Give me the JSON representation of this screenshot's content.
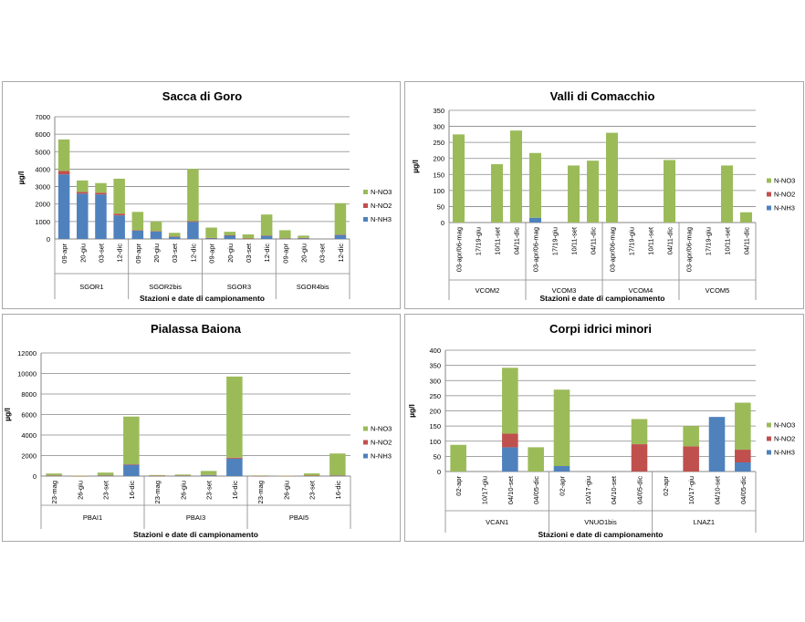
{
  "colors": {
    "NH3": "#4f81bd",
    "NO2": "#c0504d",
    "NO3": "#9bbb59",
    "grid": "#868686",
    "axis": "#868686"
  },
  "chart_data": [
    {
      "type": "bar",
      "stacked": true,
      "title": "Sacca di Goro",
      "xlabel": "Stazioni e date di campionamento",
      "ylabel": "µg/l",
      "ylim": [
        0,
        7000
      ],
      "yticks": [
        0,
        1000,
        2000,
        3000,
        4000,
        5000,
        6000,
        7000
      ],
      "legend": [
        "N-NO3",
        "N-NO2",
        "N-NH3"
      ],
      "legend_position": "right",
      "groups": [
        {
          "name": "SGOR1",
          "categories": [
            "09-apr",
            "20-giu",
            "03-set",
            "12-dic"
          ],
          "series": {
            "N-NH3": [
              3700,
              2600,
              2550,
              1350
            ],
            "N-NO2": [
              200,
              100,
              100,
              100
            ],
            "N-NO3": [
              1800,
              650,
              550,
              2000
            ]
          }
        },
        {
          "name": "SGOR2bis",
          "categories": [
            "09-apr",
            "20-giu",
            "03-set",
            "12-dic"
          ],
          "series": {
            "N-NH3": [
              480,
              430,
              130,
              980
            ],
            "N-NO2": [
              20,
              20,
              10,
              40
            ],
            "N-NO3": [
              1050,
              550,
              210,
              3000
            ]
          }
        },
        {
          "name": "SGOR3",
          "categories": [
            "09-apr",
            "20-giu",
            "03-set",
            "12-dic"
          ],
          "series": {
            "N-NH3": [
              50,
              200,
              20,
              180
            ],
            "N-NO2": [
              10,
              10,
              5,
              20
            ],
            "N-NO3": [
              590,
              200,
              235,
              1200
            ]
          }
        },
        {
          "name": "SGOR4bis",
          "categories": [
            "09-apr",
            "20-giu",
            "03-set",
            "12-dic"
          ],
          "series": {
            "N-NH3": [
              30,
              50,
              0,
              230
            ],
            "N-NO2": [
              10,
              10,
              0,
              20
            ],
            "N-NO3": [
              460,
              130,
              0,
              1800
            ]
          }
        }
      ]
    },
    {
      "type": "bar",
      "stacked": true,
      "title": "Valli di Comacchio",
      "xlabel": "Stazioni e date di campionamento",
      "ylabel": "µg/l",
      "ylim": [
        0,
        350
      ],
      "yticks": [
        0,
        50,
        100,
        150,
        200,
        250,
        300,
        350
      ],
      "legend": [
        "N-NO3",
        "N-NO2",
        "N-NH3"
      ],
      "legend_position": "right",
      "groups": [
        {
          "name": "VCOM2",
          "categories": [
            "03-apr/06-mag",
            "17/19-giu",
            "10/11-set",
            "04/11-dic"
          ],
          "series": {
            "N-NH3": [
              0,
              0,
              0,
              0
            ],
            "N-NO2": [
              0,
              0,
              0,
              0
            ],
            "N-NO3": [
              275,
              0,
              182,
              287
            ]
          }
        },
        {
          "name": "VCOM3",
          "categories": [
            "03-apr/06-mag",
            "17/19-giu",
            "10/11-set",
            "04/11-dic"
          ],
          "series": {
            "N-NH3": [
              15,
              0,
              0,
              0
            ],
            "N-NO2": [
              0,
              0,
              0,
              0
            ],
            "N-NO3": [
              202,
              0,
              178,
              193
            ]
          }
        },
        {
          "name": "VCOM4",
          "categories": [
            "03-apr/06-mag",
            "17/19-giu",
            "10/11-set",
            "04/11-dic"
          ],
          "series": {
            "N-NH3": [
              0,
              0,
              0,
              0
            ],
            "N-NO2": [
              0,
              0,
              0,
              0
            ],
            "N-NO3": [
              280,
              0,
              0,
              195
            ]
          }
        },
        {
          "name": "VCOM5",
          "categories": [
            "03-apr/06-mag",
            "17/19-giu",
            "10/11-set",
            "04/11-dic"
          ],
          "series": {
            "N-NH3": [
              0,
              0,
              0,
              0
            ],
            "N-NO2": [
              0,
              0,
              0,
              0
            ],
            "N-NO3": [
              0,
              0,
              178,
              32
            ]
          }
        }
      ]
    },
    {
      "type": "bar",
      "stacked": true,
      "title": "Pialassa Baiona",
      "xlabel": "Stazioni e date di campionamento",
      "ylabel": "µg/l",
      "ylim": [
        0,
        12000
      ],
      "yticks": [
        0,
        2000,
        4000,
        6000,
        8000,
        10000,
        12000
      ],
      "legend": [
        "N-NO3",
        "N-NO2",
        "N-NH3"
      ],
      "legend_position": "right",
      "groups": [
        {
          "name": "PBAI1",
          "categories": [
            "23-mag",
            "26-giu",
            "23-set",
            "16-dic"
          ],
          "series": {
            "N-NH3": [
              50,
              10,
              50,
              1100
            ],
            "N-NO2": [
              10,
              5,
              20,
              50
            ],
            "N-NO3": [
              190,
              35,
              270,
              4650
            ]
          }
        },
        {
          "name": "PBAI3",
          "categories": [
            "23-mag",
            "26-giu",
            "23-set",
            "16-dic"
          ],
          "series": {
            "N-NH3": [
              20,
              50,
              80,
              1700
            ],
            "N-NO2": [
              10,
              10,
              30,
              100
            ],
            "N-NO3": [
              70,
              90,
              390,
              7900
            ]
          }
        },
        {
          "name": "PBAI5",
          "categories": [
            "23-mag",
            "26-giu",
            "23-set",
            "16-dic"
          ],
          "series": {
            "N-NH3": [
              10,
              5,
              30,
              50
            ],
            "N-NO2": [
              5,
              5,
              10,
              20
            ],
            "N-NO3": [
              45,
              20,
              220,
              2130
            ]
          }
        }
      ]
    },
    {
      "type": "bar",
      "stacked": true,
      "title": "Corpi idrici minori",
      "xlabel": "Stazioni e date di campionamento",
      "ylabel": "µg/l",
      "ylim": [
        0,
        400
      ],
      "yticks": [
        0,
        50,
        100,
        150,
        200,
        250,
        300,
        350,
        400
      ],
      "legend": [
        "N-NO3",
        "N-NO2",
        "N-NH3"
      ],
      "legend_position": "right",
      "groups": [
        {
          "name": "VCAN1",
          "categories": [
            "02-apr",
            "10/17-giu",
            "04/10-set",
            "04/05-dic"
          ],
          "series": {
            "N-NH3": [
              0,
              0,
              80,
              0
            ],
            "N-NO2": [
              0,
              0,
              45,
              0
            ],
            "N-NO3": [
              88,
              0,
              217,
              80
            ]
          }
        },
        {
          "name": "VNUO1bis",
          "categories": [
            "02-apr",
            "10/17-giu",
            "04/10-set",
            "04/05-dic"
          ],
          "series": {
            "N-NH3": [
              18,
              0,
              0,
              0
            ],
            "N-NO2": [
              0,
              0,
              0,
              90
            ],
            "N-NO3": [
              252,
              0,
              0,
              83
            ]
          }
        },
        {
          "name": "LNAZ1",
          "categories": [
            "02-apr",
            "10/17-giu",
            "04/10-set",
            "04/05-dic"
          ],
          "series": {
            "N-NH3": [
              0,
              0,
              180,
              30
            ],
            "N-NO2": [
              0,
              83,
              0,
              42
            ],
            "N-NO3": [
              0,
              67,
              0,
              155
            ]
          }
        }
      ]
    }
  ]
}
